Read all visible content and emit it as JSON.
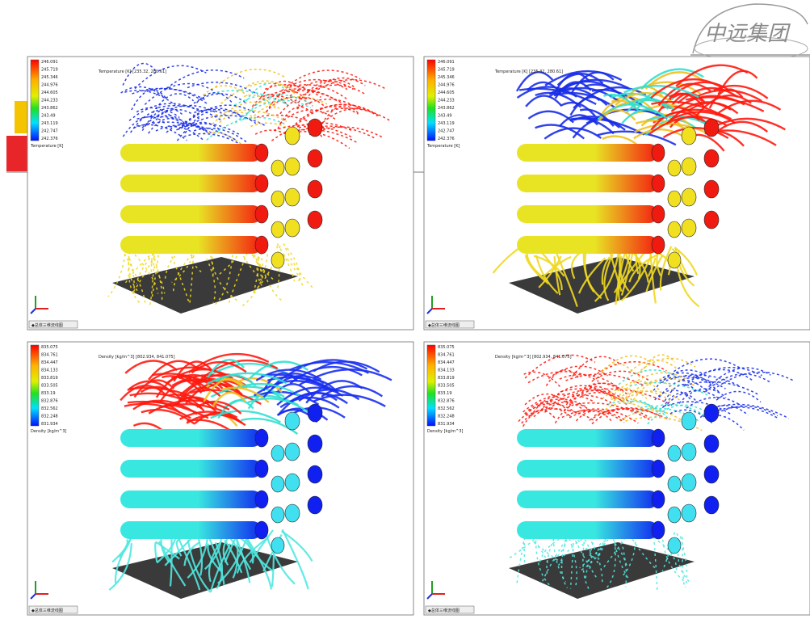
{
  "logo": "中远集团",
  "panels": [
    {
      "header": "Temperature [K] [235.32, 280.61]",
      "legend_title": "Temperature [K]",
      "legend_values": [
        "246.091",
        "245.719",
        "245.346",
        "244.976",
        "244.605",
        "244.233",
        "243.862",
        "243.49",
        "243.119",
        "242.747",
        "242.376"
      ],
      "tab": "◆总体三维流线图"
    },
    {
      "header": "Temperature [K] [235.32, 280.61]",
      "legend_title": "Temperature [K]",
      "legend_values": [
        "246.091",
        "245.719",
        "245.346",
        "244.976",
        "244.605",
        "244.233",
        "243.862",
        "243.49",
        "243.119",
        "242.747",
        "242.376"
      ],
      "tab": "◆总体三维流线图"
    },
    {
      "header": "Density [kg/m^3] [802.934, 841.075]",
      "legend_title": "Density [kg/m^3]",
      "legend_values": [
        "835.075",
        "834.761",
        "834.447",
        "834.133",
        "833.819",
        "833.505",
        "833.19",
        "832.876",
        "832.562",
        "832.248",
        "831.934"
      ],
      "tab": "◆总体三维流线图"
    },
    {
      "header": "Density [kg/m^3] [802.934, 841.075]",
      "legend_title": "Density [kg/m^3]",
      "legend_values": [
        "835.075",
        "834.761",
        "834.447",
        "834.133",
        "833.819",
        "833.505",
        "833.19",
        "832.876",
        "832.562",
        "832.248",
        "831.934"
      ],
      "tab": "◆总体三维流线图"
    }
  ]
}
